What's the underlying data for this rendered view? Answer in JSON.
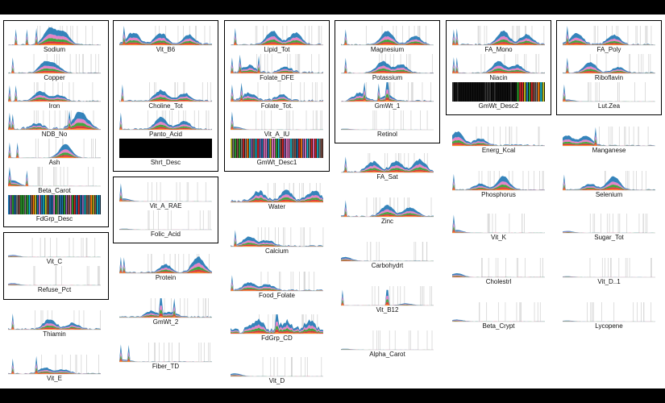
{
  "chart_data": {
    "type": "area",
    "series_colors": [
      "#1f77b4",
      "#e377c2",
      "#2ca02c",
      "#ff7f0e",
      "#d62728",
      "#9467bd",
      "#8c564b",
      "#17becf",
      "#bcbd22",
      "#7f7f7f"
    ],
    "panels": [
      {
        "label": "Sodium",
        "kind": "area",
        "peaks": [
          [
            0.45,
            0.85
          ],
          [
            0.6,
            0.65
          ]
        ],
        "spikes": [
          0.08,
          0.2,
          0.3
        ],
        "noise": 0.1
      },
      {
        "label": "Copper",
        "kind": "area",
        "peaks": [
          [
            0.4,
            0.55
          ],
          [
            0.52,
            0.35
          ]
        ],
        "spikes": [
          0.05
        ],
        "noise": 0.1
      },
      {
        "label": "Iron",
        "kind": "area",
        "peaks": [
          [
            0.35,
            0.5
          ],
          [
            0.55,
            0.3
          ]
        ],
        "spikes": [
          0.02,
          0.08
        ],
        "noise": 0.12
      },
      {
        "label": "NDB_No",
        "kind": "area",
        "peaks": [
          [
            0.75,
            0.55
          ],
          [
            0.82,
            0.45
          ],
          [
            0.3,
            0.25
          ]
        ],
        "spikes": [
          0.02,
          0.05,
          0.66
        ],
        "noise": 0.25
      },
      {
        "label": "Ash",
        "kind": "area",
        "peaks": [
          [
            0.62,
            0.7
          ]
        ],
        "spikes": [
          0.02,
          0.1
        ],
        "noise": 0.05
      },
      {
        "label": "Beta_Carot",
        "kind": "area",
        "peaks": [
          [
            0.05,
            0.3
          ]
        ],
        "spikes": [
          0.02,
          0.2
        ],
        "noise": 0.02
      },
      {
        "label": "FdGrp_Desc",
        "kind": "categorical"
      },
      {
        "label": "Vit_B6",
        "kind": "area",
        "peaks": [
          [
            0.15,
            0.6
          ],
          [
            0.45,
            0.55
          ],
          [
            0.75,
            0.5
          ]
        ],
        "spikes": [
          0.05
        ],
        "noise": 0.2
      },
      {
        "label": "Vit_A_RAE",
        "kind": "area",
        "peaks": [
          [
            0.05,
            0.15
          ]
        ],
        "spikes": [
          0.02
        ],
        "noise": 0.02
      },
      {
        "label": "Folic_Acid",
        "kind": "area",
        "peaks": [
          [
            0.05,
            0.05
          ]
        ],
        "spikes": [],
        "noise": 0.01
      },
      {
        "label": "Lipid_Tot",
        "kind": "area",
        "peaks": [
          [
            0.45,
            0.7
          ],
          [
            0.7,
            0.6
          ]
        ],
        "spikes": [
          0.05
        ],
        "noise": 0.15
      },
      {
        "label": "Folate_DFE",
        "kind": "area",
        "peaks": [
          [
            0.2,
            0.35
          ],
          [
            0.6,
            0.25
          ]
        ],
        "spikes": [
          0.02,
          0.1,
          0.3
        ],
        "noise": 0.2
      },
      {
        "label": "Folate_Tot",
        "kind": "area",
        "peaks": [
          [
            0.2,
            0.4
          ],
          [
            0.55,
            0.3
          ]
        ],
        "spikes": [
          0.02,
          0.12
        ],
        "noise": 0.2
      },
      {
        "label": "Vit_A_IU",
        "kind": "area",
        "peaks": [
          [
            0.05,
            0.15
          ]
        ],
        "spikes": [
          0.02
        ],
        "noise": 0.02
      },
      {
        "label": "GmWt_Desc1",
        "kind": "categorical"
      },
      {
        "label": "Magnesium",
        "kind": "area",
        "peaks": [
          [
            0.5,
            0.7
          ],
          [
            0.8,
            0.45
          ]
        ],
        "spikes": [
          0.05
        ],
        "noise": 0.12
      },
      {
        "label": "Potassium",
        "kind": "area",
        "peaks": [
          [
            0.45,
            0.6
          ],
          [
            0.65,
            0.45
          ]
        ],
        "spikes": [
          0.05
        ],
        "noise": 0.1
      },
      {
        "label": "GmWt_1",
        "kind": "area",
        "peaks": [
          [
            0.2,
            0.4
          ],
          [
            0.5,
            0.3
          ]
        ],
        "spikes": [
          0.25,
          0.4,
          0.5
        ],
        "noise": 0.15
      },
      {
        "label": "Retinol",
        "kind": "area",
        "peaks": [
          [
            0.05,
            0.05
          ]
        ],
        "spikes": [],
        "noise": 0.01
      },
      {
        "label": "FA_Mono",
        "kind": "area",
        "peaks": [
          [
            0.55,
            0.7
          ],
          [
            0.8,
            0.5
          ]
        ],
        "spikes": [
          0.02,
          0.05
        ],
        "noise": 0.15
      },
      {
        "label": "Niacin",
        "kind": "area",
        "peaks": [
          [
            0.5,
            0.6
          ],
          [
            0.7,
            0.4
          ]
        ],
        "spikes": [
          0.02,
          0.05
        ],
        "noise": 0.1
      },
      {
        "label": "GmWt_Desc2",
        "kind": "categorical_dark"
      },
      {
        "label": "FA_Poly",
        "kind": "area",
        "peaks": [
          [
            0.15,
            0.6
          ],
          [
            0.55,
            0.5
          ]
        ],
        "spikes": [
          0.05
        ],
        "noise": 0.15
      },
      {
        "label": "Riboflavin",
        "kind": "area",
        "peaks": [
          [
            0.3,
            0.55
          ],
          [
            0.6,
            0.3
          ]
        ],
        "spikes": [
          0.05
        ],
        "noise": 0.12
      },
      {
        "label": "Lut_Zea",
        "kind": "area",
        "peaks": [
          [
            0.05,
            0.1
          ]
        ],
        "spikes": [
          0.02
        ],
        "noise": 0.02
      },
      {
        "label": "Thiamin",
        "kind": "area",
        "peaks": [
          [
            0.45,
            0.5
          ],
          [
            0.7,
            0.3
          ]
        ],
        "spikes": [
          0.05
        ],
        "noise": 0.15
      },
      {
        "label": "Vit_C",
        "kind": "area",
        "peaks": [
          [
            0.05,
            0.1
          ]
        ],
        "spikes": [],
        "noise": 0.02
      },
      {
        "label": "Refuse_Pct",
        "kind": "area",
        "peaks": [
          [
            0.05,
            0.1
          ]
        ],
        "spikes": [],
        "noise": 0.02
      },
      {
        "label": "Vit_E",
        "kind": "area",
        "peaks": [
          [
            0.4,
            0.3
          ],
          [
            0.6,
            0.2
          ]
        ],
        "spikes": [
          0.05,
          0.3
        ],
        "noise": 0.1
      },
      {
        "label": "Panto_Acid",
        "kind": "area",
        "peaks": [
          [
            0.45,
            0.6
          ],
          [
            0.7,
            0.4
          ]
        ],
        "spikes": [
          0.02
        ],
        "noise": 0.15
      },
      {
        "label": "Choline_Tot",
        "kind": "area",
        "peaks": [
          [
            0.45,
            0.55
          ],
          [
            0.7,
            0.4
          ]
        ],
        "spikes": [
          0.03
        ],
        "noise": 0.15
      },
      {
        "label": "Shrt_Desc",
        "kind": "black"
      },
      {
        "label": "Protein",
        "kind": "area",
        "peaks": [
          [
            0.85,
            0.8
          ],
          [
            0.5,
            0.4
          ]
        ],
        "spikes": [
          0.02,
          0.05
        ],
        "noise": 0.15
      },
      {
        "label": "GmWt_2",
        "kind": "area",
        "peaks": [
          [
            0.35,
            0.3
          ],
          [
            0.55,
            0.25
          ]
        ],
        "spikes": [
          0.45,
          0.6
        ],
        "noise": 0.15
      },
      {
        "label": "Fiber_TD",
        "kind": "area",
        "peaks": [
          [
            0.05,
            0.1
          ]
        ],
        "spikes": [
          0.02,
          0.1
        ],
        "noise": 0.05
      },
      {
        "label": "Water",
        "kind": "area",
        "peaks": [
          [
            0.3,
            0.5
          ],
          [
            0.6,
            0.5
          ],
          [
            0.9,
            0.5
          ]
        ],
        "spikes": [],
        "noise": 0.3
      },
      {
        "label": "Calcium",
        "kind": "area",
        "peaks": [
          [
            0.2,
            0.5
          ],
          [
            0.4,
            0.3
          ]
        ],
        "spikes": [
          0.05
        ],
        "noise": 0.15
      },
      {
        "label": "Food_Folate",
        "kind": "area",
        "peaks": [
          [
            0.2,
            0.4
          ],
          [
            0.4,
            0.3
          ]
        ],
        "spikes": [
          0.02
        ],
        "noise": 0.15
      },
      {
        "label": "FdGrp_CD",
        "kind": "area",
        "peaks": [
          [
            0.3,
            0.5
          ],
          [
            0.6,
            0.5
          ],
          [
            0.85,
            0.5
          ]
        ],
        "spikes": [
          0.5
        ],
        "noise": 0.5
      },
      {
        "label": "Vit_D",
        "kind": "area",
        "peaks": [
          [
            0.05,
            0.15
          ]
        ],
        "spikes": [],
        "noise": 0.02
      },
      {
        "label": "FA_Sat",
        "kind": "area",
        "peaks": [
          [
            0.35,
            0.5
          ],
          [
            0.6,
            0.55
          ],
          [
            0.85,
            0.6
          ]
        ],
        "spikes": [
          0.05
        ],
        "noise": 0.2
      },
      {
        "label": "Zinc",
        "kind": "area",
        "peaks": [
          [
            0.5,
            0.55
          ],
          [
            0.75,
            0.45
          ]
        ],
        "spikes": [
          0.05
        ],
        "noise": 0.15
      },
      {
        "label": "Carbohydrt",
        "kind": "area",
        "peaks": [
          [
            0.05,
            0.2
          ]
        ],
        "spikes": [],
        "noise": 0.05
      },
      {
        "label": "Vit_B12",
        "kind": "area",
        "peaks": [
          [
            0.7,
            0.1
          ]
        ],
        "spikes": [
          0.02,
          0.5
        ],
        "noise": 0.03
      },
      {
        "label": "Alpha_Carot",
        "kind": "area",
        "peaks": [
          [
            0.05,
            0.05
          ]
        ],
        "spikes": [],
        "noise": 0.01
      },
      {
        "label": "Energ_Kcal",
        "kind": "area",
        "peaks": [
          [
            0.05,
            0.7
          ],
          [
            0.3,
            0.35
          ]
        ],
        "spikes": [],
        "noise": 0.15
      },
      {
        "label": "Phosphorus",
        "kind": "area",
        "peaks": [
          [
            0.55,
            0.7
          ],
          [
            0.3,
            0.3
          ]
        ],
        "spikes": [
          0.02
        ],
        "noise": 0.1
      },
      {
        "label": "Vit_K",
        "kind": "area",
        "peaks": [
          [
            0.05,
            0.15
          ]
        ],
        "spikes": [
          0.02
        ],
        "noise": 0.02
      },
      {
        "label": "Cholestrl",
        "kind": "area",
        "peaks": [
          [
            0.05,
            0.2
          ]
        ],
        "spikes": [],
        "noise": 0.03
      },
      {
        "label": "Beta_Crypt",
        "kind": "area",
        "peaks": [
          [
            0.05,
            0.1
          ]
        ],
        "spikes": [],
        "noise": 0.02
      },
      {
        "label": "Manganese",
        "kind": "area",
        "peaks": [
          [
            0.05,
            0.5
          ],
          [
            0.25,
            0.5
          ]
        ],
        "spikes": [
          0.35
        ],
        "noise": 0.1
      },
      {
        "label": "Selenium",
        "kind": "area",
        "peaks": [
          [
            0.55,
            0.7
          ],
          [
            0.3,
            0.3
          ]
        ],
        "spikes": [
          0.02
        ],
        "noise": 0.1
      },
      {
        "label": "Sugar_Tot",
        "kind": "area",
        "peaks": [
          [
            0.05,
            0.1
          ]
        ],
        "spikes": [],
        "noise": 0.02
      },
      {
        "label": "Vit_D_1",
        "kind": "area",
        "peaks": [
          [
            0.05,
            0.05
          ]
        ],
        "spikes": [],
        "noise": 0.01
      },
      {
        "label": "Lycopene",
        "kind": "area",
        "peaks": [
          [
            0.05,
            0.05
          ]
        ],
        "spikes": [],
        "noise": 0.01
      }
    ],
    "label_text": {
      "Lut_Zea": "Lut.Zea",
      "Vit_D_1": "Vit_D..1",
      "Folate_Tot": "Folate_Tot."
    }
  }
}
